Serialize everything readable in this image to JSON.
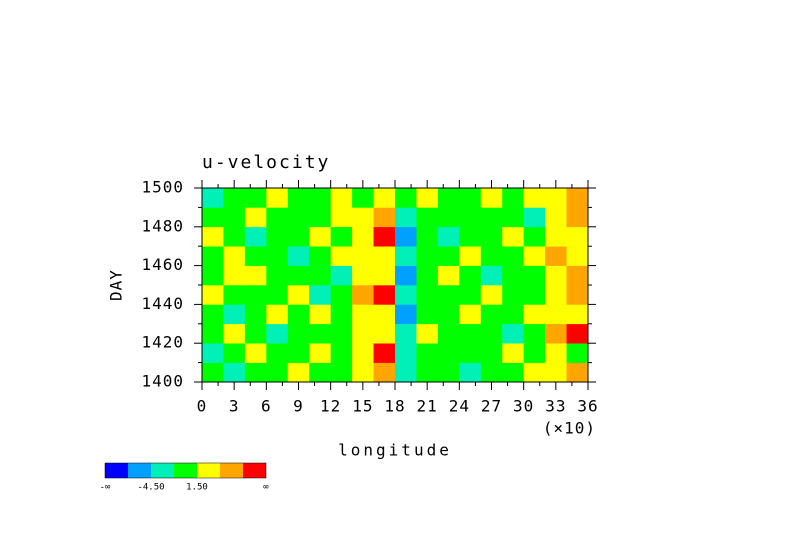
{
  "chart_data": {
    "type": "heatmap",
    "title": "u-velocity",
    "xlabel": "longitude",
    "xscale_note": "(×10)",
    "ylabel": "DAY",
    "xlim": [
      0,
      36
    ],
    "ylim": [
      1400,
      1500
    ],
    "xticks": [
      0,
      3,
      6,
      9,
      12,
      15,
      18,
      21,
      24,
      27,
      30,
      33,
      36
    ],
    "yticks": [
      1400,
      1420,
      1440,
      1460,
      1480,
      1500
    ],
    "x_edges": [
      0,
      2,
      4,
      6,
      8,
      10,
      12,
      14,
      16,
      18,
      20,
      22,
      24,
      26,
      28,
      30,
      32,
      34,
      36
    ],
    "y_edges": [
      1400,
      1410,
      1420,
      1430,
      1440,
      1450,
      1460,
      1470,
      1480,
      1490,
      1500
    ],
    "values": [
      [
        0.5,
        -2,
        1,
        0,
        2,
        -1,
        0.3,
        3,
        5,
        -3,
        1,
        0,
        -2,
        1,
        0.5,
        2,
        3,
        5
      ],
      [
        -2,
        0,
        1.8,
        -1,
        0.4,
        2,
        -0.5,
        2,
        8,
        -4,
        0,
        1,
        -1,
        0.2,
        2,
        -1,
        2,
        1
      ],
      [
        1,
        2,
        -0.3,
        -2,
        1,
        0,
        0.6,
        4,
        3,
        -2,
        2,
        -0.8,
        1,
        0,
        -2,
        1,
        5,
        8
      ],
      [
        -0.4,
        -3,
        1,
        2,
        -1,
        1.7,
        0,
        2,
        4,
        -5,
        0,
        1,
        2,
        -1,
        0,
        2,
        4,
        3
      ],
      [
        2,
        0,
        -1,
        0.5,
        3,
        -2,
        1,
        5,
        8,
        -3,
        1,
        0,
        -1,
        2,
        1,
        -0.5,
        3,
        6
      ],
      [
        0,
        1.6,
        2,
        -1,
        0,
        1,
        -2,
        3,
        2,
        -6,
        0.5,
        2,
        0,
        -2,
        1,
        0,
        2,
        5
      ],
      [
        -1,
        2,
        0,
        1,
        -2,
        0.4,
        2,
        4,
        3,
        -3,
        -1,
        0,
        2,
        1,
        -0.3,
        2,
        6,
        4
      ],
      [
        1.8,
        -0.5,
        -2,
        0,
        1,
        2,
        0,
        3,
        9,
        -5,
        1,
        -2,
        0,
        1,
        2,
        0,
        3,
        2
      ],
      [
        0,
        1,
        2,
        -1,
        0.3,
        -1,
        1.9,
        2,
        5,
        -2,
        0,
        1,
        -1,
        0,
        1,
        -2,
        2,
        5
      ],
      [
        -2.5,
        0,
        1,
        2,
        -1,
        0,
        2,
        1,
        4,
        -1,
        2,
        0,
        1,
        3,
        -1,
        2,
        4,
        6
      ]
    ],
    "colorbar": {
      "colors": [
        "#0000ff",
        "#00a0ff",
        "#00f0b8",
        "#00ff00",
        "#ffff00",
        "#ffa500",
        "#ff0000"
      ],
      "low_label": "-∞",
      "high_label": "∞",
      "ticks": [
        {
          "value": -4.5,
          "label": "-4.50"
        },
        {
          "value": 1.5,
          "label": "1.50"
        }
      ]
    }
  }
}
